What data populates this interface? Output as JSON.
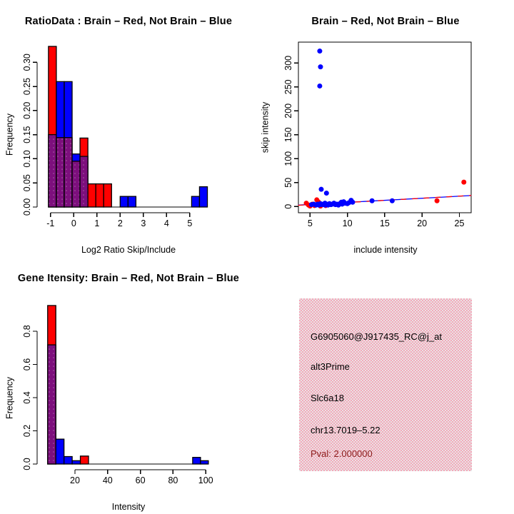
{
  "colors": {
    "red": "#ff0000",
    "blue": "#0000ff",
    "purple": "#7d0f7d",
    "purple_dot": "#a85fa8",
    "axis_black": "#000000",
    "pval_dark_red": "#8b1a1a",
    "info_pink": "#f4a8ba",
    "info_gray": "#e9e3e4"
  },
  "chart_data": [
    {
      "id": "ratio_hist",
      "type": "bar",
      "title": "RatioData : Brain – Red, Not Brain – Blue",
      "xlabel": "Log2 Ratio Skip/Include",
      "ylabel": "Frequency",
      "x_ticks": [
        "-1",
        "0",
        "1",
        "2",
        "3",
        "4",
        "5"
      ],
      "y_ticks": [
        "0.00",
        "0.05",
        "0.10",
        "0.15",
        "0.20",
        "0.25",
        "0.30"
      ],
      "xlim": [
        -1.45,
        6.1
      ],
      "ylim": [
        0,
        0.35
      ],
      "legend_note": "Brain = red, Not Brain = blue, purple = overlap of both histograms",
      "bars": [
        {
          "x0": -1.09,
          "x1": -0.75,
          "overlap": 0.15,
          "total": 0.333,
          "color": "red"
        },
        {
          "x0": -0.75,
          "x1": -0.41,
          "overlap": 0.144,
          "total": 0.26,
          "color": "blue"
        },
        {
          "x0": -0.41,
          "x1": -0.07,
          "overlap": 0.144,
          "total": 0.26,
          "color": "blue"
        },
        {
          "x0": -0.07,
          "x1": 0.27,
          "overlap": 0.095,
          "total": 0.11,
          "color": "blue"
        },
        {
          "x0": 0.27,
          "x1": 0.61,
          "overlap": 0.105,
          "total": 0.143,
          "color": "red"
        },
        {
          "x0": 0.61,
          "x1": 0.95,
          "overlap": 0,
          "total": 0.048,
          "color": "red"
        },
        {
          "x0": 0.95,
          "x1": 1.29,
          "overlap": 0,
          "total": 0.048,
          "color": "red"
        },
        {
          "x0": 1.29,
          "x1": 1.63,
          "overlap": 0,
          "total": 0.048,
          "color": "red"
        },
        {
          "x0": 2.0,
          "x1": 2.34,
          "overlap": 0,
          "total": 0.022,
          "color": "blue"
        },
        {
          "x0": 2.34,
          "x1": 2.68,
          "overlap": 0,
          "total": 0.022,
          "color": "blue"
        },
        {
          "x0": 5.08,
          "x1": 5.42,
          "overlap": 0,
          "total": 0.022,
          "color": "blue"
        },
        {
          "x0": 5.42,
          "x1": 5.76,
          "overlap": 0,
          "total": 0.042,
          "color": "blue"
        }
      ]
    },
    {
      "id": "scatter",
      "type": "scatter",
      "title": "Brain – Red, Not Brain – Blue",
      "xlabel": "include intensity",
      "ylabel": "skip intensity",
      "x_ticks": [
        "5",
        "10",
        "15",
        "20",
        "25"
      ],
      "y_ticks": [
        "0",
        "50",
        "100",
        "150",
        "200",
        "250",
        "300"
      ],
      "xlim": [
        3.4,
        26.6
      ],
      "ylim": [
        -13,
        343
      ],
      "series": [
        {
          "name": "Brain",
          "color": "red",
          "points": [
            [
              4.5,
              7
            ],
            [
              4.8,
              3
            ],
            [
              5.0,
              1
            ],
            [
              5.3,
              5
            ],
            [
              5.6,
              2
            ],
            [
              5.9,
              14
            ],
            [
              6.1,
              10
            ],
            [
              6.4,
              1
            ],
            [
              6.7,
              4
            ],
            [
              7.1,
              2
            ],
            [
              7.5,
              4
            ],
            [
              22.0,
              12
            ],
            [
              25.6,
              51
            ]
          ]
        },
        {
          "name": "Not Brain",
          "color": "blue",
          "points": [
            [
              6.3,
              325
            ],
            [
              6.4,
              292
            ],
            [
              6.3,
              252
            ],
            [
              6.5,
              36
            ],
            [
              7.2,
              28
            ],
            [
              5.2,
              4
            ],
            [
              5.5,
              5
            ],
            [
              5.8,
              3
            ],
            [
              6.0,
              5
            ],
            [
              6.2,
              3
            ],
            [
              6.4,
              6
            ],
            [
              6.6,
              4
            ],
            [
              6.8,
              5
            ],
            [
              7.0,
              3
            ],
            [
              7.0,
              7
            ],
            [
              7.2,
              5
            ],
            [
              7.4,
              3
            ],
            [
              7.6,
              6
            ],
            [
              7.8,
              4
            ],
            [
              8.0,
              5
            ],
            [
              8.2,
              7
            ],
            [
              8.4,
              4
            ],
            [
              8.6,
              5
            ],
            [
              8.8,
              3
            ],
            [
              9.0,
              6
            ],
            [
              9.2,
              9
            ],
            [
              9.3,
              5
            ],
            [
              9.5,
              10
            ],
            [
              9.7,
              7
            ],
            [
              10.0,
              6
            ],
            [
              10.2,
              8
            ],
            [
              10.5,
              13
            ],
            [
              10.7,
              9
            ],
            [
              13.3,
              12
            ],
            [
              16.0,
              12
            ]
          ]
        }
      ],
      "fit_lines": [
        {
          "color": "blue",
          "style": "solid",
          "from": [
            3.4,
            3.0
          ],
          "to": [
            26.6,
            23.0
          ]
        },
        {
          "color": "red",
          "style": "dashed",
          "from": [
            3.4,
            2.6
          ],
          "to": [
            26.6,
            23.2
          ]
        }
      ]
    },
    {
      "id": "gene_hist",
      "type": "bar",
      "title": "Gene Itensity: Brain – Red, Not Brain – Blue",
      "xlabel": "Intensity",
      "ylabel": "Frequency",
      "x_ticks": [
        "20",
        "40",
        "60",
        "80",
        "100"
      ],
      "y_ticks": [
        "0.0",
        "0.2",
        "0.4",
        "0.6",
        "0.8"
      ],
      "xlim": [
        0,
        105
      ],
      "ylim": [
        0,
        0.97
      ],
      "legend_note": "Brain = red, Not Brain = blue, purple = overlap of both histograms",
      "bars": [
        {
          "x0": 3.3,
          "x1": 8.3,
          "overlap": 0.718,
          "total": 0.955,
          "color": "red"
        },
        {
          "x0": 8.3,
          "x1": 13.3,
          "overlap": 0,
          "total": 0.15,
          "color": "blue"
        },
        {
          "x0": 13.3,
          "x1": 18.3,
          "overlap": 0,
          "total": 0.045,
          "color": "blue"
        },
        {
          "x0": 18.3,
          "x1": 23.3,
          "overlap": 0,
          "total": 0.02,
          "color": "blue"
        },
        {
          "x0": 23.3,
          "x1": 28.3,
          "overlap": 0,
          "total": 0.048,
          "color": "red"
        },
        {
          "x0": 92.0,
          "x1": 96.8,
          "overlap": 0,
          "total": 0.04,
          "color": "blue"
        },
        {
          "x0": 96.8,
          "x1": 101.6,
          "overlap": 0,
          "total": 0.02,
          "color": "blue"
        }
      ]
    }
  ],
  "info_panel": {
    "lines": [
      {
        "text": "G6905060@J917435_RC@j_at",
        "color": "#000000"
      },
      {
        "text": "alt3Prime",
        "color": "#000000"
      },
      {
        "text": "Slc6a18",
        "color": "#000000"
      },
      {
        "text": "chr13.7019–5.22",
        "color": "#000000"
      },
      {
        "text": "Pval: 2.000000",
        "color": "#8b1a1a"
      }
    ]
  }
}
